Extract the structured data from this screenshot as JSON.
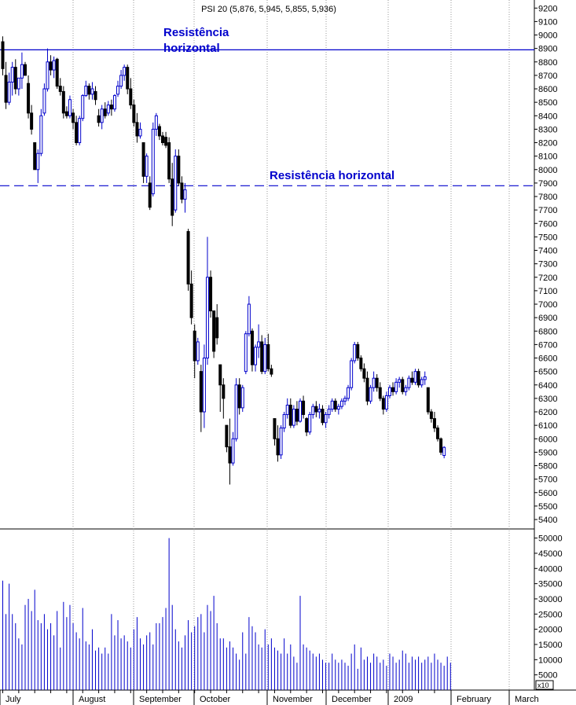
{
  "chart_data": [
    {
      "type": "candlestick",
      "title": "PSI 20 (5,876, 5,945, 5,855, 5,936)",
      "y_ticks": [
        9200,
        9100,
        9000,
        8900,
        8800,
        8700,
        8600,
        8500,
        8400,
        8300,
        8200,
        8100,
        8000,
        7900,
        7800,
        7700,
        7600,
        7500,
        7400,
        7300,
        7200,
        7100,
        7000,
        6900,
        6800,
        6700,
        6600,
        6500,
        6400,
        6300,
        6200,
        6100,
        6000,
        5900,
        5800,
        5700,
        5600,
        5500,
        5400
      ],
      "ylim": [
        5330,
        9260
      ],
      "x_labels": [
        "July",
        "August",
        "September",
        "October",
        "November",
        "December",
        "2009",
        "February",
        "March"
      ],
      "grid": "vertical dotted",
      "annotations": [
        {
          "text_lines": [
            "Resistência",
            "horizontal"
          ],
          "color": "#0000cc"
        },
        {
          "text": "Resistência horizontal",
          "color": "#0000cc"
        }
      ],
      "reference_lines": [
        {
          "y": 8890,
          "style": "solid",
          "color": "#0000cc"
        },
        {
          "y": 7880,
          "style": "dashed",
          "color": "#0000cc"
        }
      ],
      "series": [
        {
          "period": "July",
          "ohlc": [
            [
              8950,
              8990,
              8700,
              8750
            ],
            [
              8700,
              8800,
              8450,
              8500
            ],
            [
              8500,
              8720,
              8480,
              8650
            ],
            [
              8650,
              8800,
              8550,
              8760
            ],
            [
              8760,
              8820,
              8560,
              8600
            ],
            [
              8600,
              8680,
              8550,
              8680
            ],
            [
              8680,
              8870,
              8600,
              8780
            ],
            [
              8780,
              8800,
              8700,
              8700
            ],
            [
              8640,
              8700,
              8380,
              8420
            ],
            [
              8420,
              8480,
              8260,
              8300
            ],
            [
              8200,
              8200,
              8000,
              8000
            ],
            [
              8000,
              8150,
              7900,
              8120
            ],
            [
              8120,
              8450,
              8100,
              8400
            ],
            [
              8420,
              8640,
              8400,
              8600
            ],
            [
              8600,
              8900,
              8580,
              8800
            ],
            [
              8800,
              8850,
              8700,
              8740
            ],
            [
              8740,
              8840,
              8680,
              8810
            ]
          ]
        },
        {
          "period": "August",
          "ohlc": [
            [
              8820,
              8830,
              8600,
              8620
            ],
            [
              8620,
              8680,
              8550,
              8580
            ],
            [
              8580,
              8620,
              8380,
              8420
            ],
            [
              8430,
              8470,
              8380,
              8400
            ],
            [
              8400,
              8550,
              8380,
              8520
            ],
            [
              8420,
              8450,
              8300,
              8350
            ],
            [
              8350,
              8400,
              8180,
              8200
            ],
            [
              8200,
              8400,
              8180,
              8380
            ],
            [
              8380,
              8560,
              8360,
              8550
            ],
            [
              8550,
              8660,
              8540,
              8620
            ],
            [
              8620,
              8640,
              8520,
              8560
            ],
            [
              8560,
              8650,
              8520,
              8600
            ],
            [
              8580,
              8620,
              8480,
              8520
            ],
            [
              8400,
              8450,
              8320,
              8350
            ],
            [
              8350,
              8480,
              8300,
              8450
            ],
            [
              8450,
              8500,
              8380,
              8400
            ],
            [
              8420,
              8510,
              8400,
              8480
            ],
            [
              8480,
              8520,
              8400,
              8450
            ],
            [
              8450,
              8560,
              8430,
              8550
            ],
            [
              8560,
              8660,
              8540,
              8620
            ],
            [
              8620,
              8740,
              8600,
              8700
            ],
            [
              8700,
              8780,
              8660,
              8760
            ]
          ]
        },
        {
          "period": "September",
          "ohlc": [
            [
              8760,
              8780,
              8560,
              8600
            ],
            [
              8600,
              8680,
              8450,
              8480
            ],
            [
              8480,
              8520,
              8320,
              8350
            ],
            [
              8350,
              8420,
              8200,
              8250
            ],
            [
              8250,
              8350,
              8230,
              8300
            ],
            [
              8200,
              8200,
              7900,
              7950
            ],
            [
              7950,
              8120,
              7900,
              8100
            ],
            [
              7900,
              7950,
              7700,
              7720
            ],
            [
              7820,
              8350,
              7800,
              8300
            ],
            [
              8300,
              8420,
              8250,
              8400
            ],
            [
              8320,
              8340,
              8220,
              8250
            ],
            [
              8250,
              8280,
              8180,
              8200
            ],
            [
              8240,
              8280,
              8160,
              8180
            ],
            [
              8200,
              8240,
              7900,
              7930
            ],
            [
              7930,
              8050,
              7580,
              7660
            ],
            [
              7700,
              8150,
              7680,
              8100
            ],
            [
              8100,
              8150,
              7880,
              7900
            ]
          ]
        },
        {
          "period": "October",
          "ohlc": [
            [
              7900,
              7950,
              7750,
              7780
            ],
            [
              7780,
              7900,
              7680,
              7850
            ],
            [
              7540,
              7560,
              7100,
              7150
            ],
            [
              7150,
              7250,
              6850,
              6900
            ],
            [
              6800,
              6850,
              6450,
              6580
            ],
            [
              6580,
              6750,
              6550,
              6720
            ],
            [
              6500,
              6550,
              6050,
              6200
            ],
            [
              6200,
              6700,
              6080,
              6600
            ],
            [
              6600,
              7500,
              6550,
              7200
            ],
            [
              7200,
              7250,
              6900,
              6950
            ],
            [
              6950,
              6950,
              6600,
              6650
            ],
            [
              6900,
              7000,
              6700,
              6750
            ],
            [
              6550,
              6550,
              6200,
              6400
            ],
            [
              6400,
              6450,
              6150,
              6300
            ],
            [
              6100,
              6100,
              5900,
              5940
            ],
            [
              5940,
              6150,
              5660,
              5820
            ],
            [
              5820,
              6050,
              5800,
              6000
            ],
            [
              6000,
              6450,
              5980,
              6400
            ]
          ]
        },
        {
          "period": "November",
          "ohlc": [
            [
              6400,
              6450,
              6180,
              6230
            ],
            [
              6230,
              6400,
              6200,
              6380
            ],
            [
              6500,
              6800,
              6480,
              6780
            ],
            [
              6780,
              7060,
              6760,
              7000
            ],
            [
              6800,
              6820,
              6500,
              6550
            ],
            [
              6550,
              6700,
              6500,
              6680
            ],
            [
              6680,
              6850,
              6600,
              6720
            ],
            [
              6720,
              6770,
              6480,
              6500
            ],
            [
              6500,
              6750,
              6480,
              6700
            ],
            [
              6700,
              6780,
              6500,
              6520
            ],
            [
              6520,
              6550,
              6460,
              6480
            ],
            [
              6150,
              6150,
              5950,
              6000
            ],
            [
              6000,
              6100,
              5830,
              5880
            ],
            [
              5880,
              6100,
              5850,
              6080
            ],
            [
              6080,
              6200,
              6050,
              6180
            ],
            [
              6180,
              6300,
              6150,
              6250
            ]
          ]
        },
        {
          "period": "December",
          "ohlc": [
            [
              6250,
              6300,
              6080,
              6100
            ],
            [
              6100,
              6250,
              6080,
              6220
            ],
            [
              6220,
              6280,
              6100,
              6130
            ],
            [
              6130,
              6300,
              6120,
              6280
            ],
            [
              6280,
              6320,
              6150,
              6180
            ],
            [
              6150,
              6160,
              6020,
              6050
            ],
            [
              6050,
              6200,
              6030,
              6180
            ],
            [
              6180,
              6260,
              6150,
              6240
            ],
            [
              6240,
              6280,
              6160,
              6200
            ],
            [
              6200,
              6260,
              6150,
              6220
            ],
            [
              6220,
              6250,
              6100,
              6120
            ],
            [
              6120,
              6200,
              6080,
              6180
            ],
            [
              6180,
              6250,
              6150,
              6220
            ],
            [
              6220,
              6300,
              6200,
              6280
            ],
            [
              6280,
              6300,
              6200,
              6220
            ],
            [
              6220,
              6260,
              6180,
              6240
            ],
            [
              6240,
              6300,
              6220,
              6280
            ],
            [
              6280,
              6320,
              6250,
              6300
            ]
          ]
        },
        {
          "period": "2009",
          "ohlc": [
            [
              6300,
              6400,
              6280,
              6380
            ],
            [
              6380,
              6600,
              6360,
              6580
            ],
            [
              6580,
              6720,
              6560,
              6700
            ],
            [
              6700,
              6720,
              6580,
              6600
            ],
            [
              6600,
              6620,
              6500,
              6520
            ],
            [
              6520,
              6560,
              6420,
              6450
            ],
            [
              6450,
              6500,
              6250,
              6280
            ],
            [
              6280,
              6400,
              6260,
              6380
            ],
            [
              6380,
              6500,
              6350,
              6450
            ],
            [
              6450,
              6480,
              6350,
              6380
            ],
            [
              6380,
              6420,
              6280,
              6300
            ],
            [
              6300,
              6320,
              6180,
              6220
            ],
            [
              6220,
              6350,
              6200,
              6320
            ],
            [
              6320,
              6400,
              6300,
              6380
            ],
            [
              6380,
              6420,
              6320,
              6350
            ],
            [
              6350,
              6450,
              6330,
              6420
            ],
            [
              6420,
              6460,
              6380,
              6440
            ],
            [
              6440,
              6460,
              6330,
              6350
            ],
            [
              6350,
              6400,
              6320,
              6380
            ],
            [
              6380,
              6470,
              6360,
              6450
            ]
          ]
        },
        {
          "period": "February",
          "ohlc": [
            [
              6450,
              6500,
              6400,
              6420
            ],
            [
              6420,
              6520,
              6400,
              6500
            ],
            [
              6500,
              6520,
              6380,
              6400
            ],
            [
              6400,
              6460,
              6380,
              6440
            ],
            [
              6440,
              6500,
              6400,
              6460
            ],
            [
              6380,
              6380,
              6180,
              6200
            ],
            [
              6200,
              6220,
              6120,
              6150
            ],
            [
              6150,
              6200,
              6050,
              6080
            ],
            [
              6080,
              6100,
              5980,
              6000
            ],
            [
              6000,
              6010,
              5880,
              5900
            ],
            [
              5876,
              5945,
              5855,
              5936
            ]
          ]
        }
      ]
    },
    {
      "type": "bar",
      "y_ticks": [
        50000,
        45000,
        40000,
        35000,
        30000,
        25000,
        20000,
        15000,
        10000,
        5000
      ],
      "ylim": [
        0,
        53000
      ],
      "axis_note": "x10",
      "color": "#0000cc",
      "values": [
        36000,
        25000,
        35000,
        25000,
        22000,
        17000,
        15000,
        28000,
        30000,
        26000,
        33000,
        23000,
        22000,
        25000,
        20000,
        22000,
        18000,
        26000,
        14000,
        29000,
        24000,
        28000,
        22000,
        19000,
        17000,
        27000,
        16000,
        15000,
        20000,
        13000,
        14000,
        12000,
        14000,
        12000,
        25000,
        18000,
        23000,
        17000,
        18000,
        16000,
        14000,
        20000,
        24000,
        17000,
        15000,
        18000,
        19000,
        15000,
        22000,
        22000,
        24000,
        27000,
        50000,
        28000,
        20000,
        16000,
        14000,
        18000,
        23000,
        19000,
        21000,
        24000,
        25000,
        19000,
        28000,
        26000,
        31000,
        22000,
        17000,
        17000,
        14000,
        16000,
        14000,
        12000,
        10000,
        19000,
        12000,
        24000,
        21000,
        19000,
        15000,
        14000,
        20000,
        15000,
        17000,
        14000,
        13000,
        12000,
        17000,
        12000,
        15000,
        11000,
        9000,
        31000,
        15000,
        14000,
        13000,
        12000,
        11000,
        12000,
        10000,
        9000,
        9000,
        12000,
        10000,
        9000,
        10000,
        9000,
        8000,
        12000,
        15000,
        7000,
        14000,
        10000,
        11000,
        9000,
        12000,
        11000,
        9000,
        10000,
        8000,
        12000,
        11000,
        9000,
        10000,
        13000,
        12000,
        9000,
        11000,
        10000,
        11000,
        9000,
        10000,
        11000,
        9000,
        12000,
        10000,
        9000,
        8000,
        11000,
        9000
      ]
    }
  ]
}
